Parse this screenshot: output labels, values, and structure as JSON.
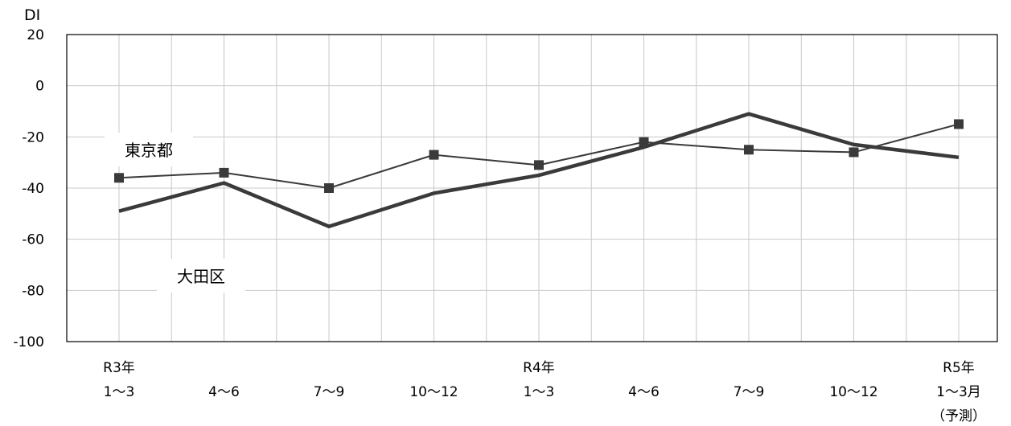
{
  "chart_data": {
    "type": "line",
    "ylabel": "DI",
    "ylim": [
      -100,
      20
    ],
    "yticks": [
      "20",
      "0",
      "-20",
      "-40",
      "-60",
      "-80",
      "-100"
    ],
    "categories": [
      [
        "R3年",
        "1〜3"
      ],
      [
        "4〜6"
      ],
      [
        "7〜9"
      ],
      [
        "10〜12"
      ],
      [
        "R4年",
        "1〜3"
      ],
      [
        "4〜6"
      ],
      [
        "7〜9"
      ],
      [
        "10〜12"
      ],
      [
        "R5年",
        "1〜3月",
        "（予測）"
      ]
    ],
    "grid": true,
    "series": [
      {
        "name": "東京都",
        "values": [
          -36,
          -34,
          -40,
          -27,
          -31,
          -22,
          -25,
          -26,
          -15
        ],
        "color": "#3a3a3a",
        "marker": "square"
      },
      {
        "name": "大田区",
        "values": [
          -49,
          -38,
          -55,
          -42,
          -35,
          -24,
          -11,
          -23,
          -28
        ],
        "color": "#3a3a3a",
        "marker": "none"
      }
    ]
  }
}
